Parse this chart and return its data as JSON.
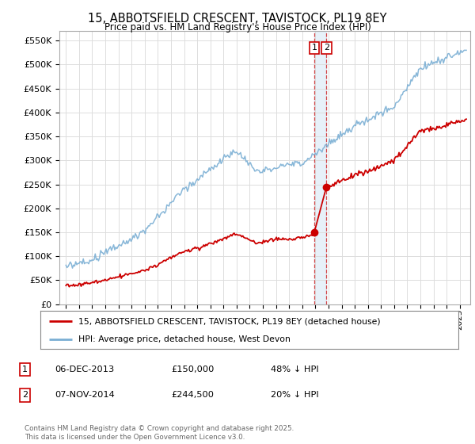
{
  "title": "15, ABBOTSFIELD CRESCENT, TAVISTOCK, PL19 8EY",
  "subtitle": "Price paid vs. HM Land Registry's House Price Index (HPI)",
  "title_fontsize": 11,
  "subtitle_fontsize": 9,
  "legend_line1": "15, ABBOTSFIELD CRESCENT, TAVISTOCK, PL19 8EY (detached house)",
  "legend_line2": "HPI: Average price, detached house, West Devon",
  "red_color": "#cc0000",
  "blue_color": "#7bafd4",
  "vline_color": "#cc0000",
  "transaction1_date": 2013.92,
  "transaction1_price": 150000,
  "transaction2_date": 2014.84,
  "transaction2_price": 244500,
  "table_rows": [
    {
      "num": "1",
      "date": "06-DEC-2013",
      "price": "£150,000",
      "pct": "48% ↓ HPI"
    },
    {
      "num": "2",
      "date": "07-NOV-2014",
      "price": "£244,500",
      "pct": "20% ↓ HPI"
    }
  ],
  "footer": "Contains HM Land Registry data © Crown copyright and database right 2025.\nThis data is licensed under the Open Government Licence v3.0.",
  "ylim": [
    0,
    570000
  ],
  "yticks": [
    0,
    50000,
    100000,
    150000,
    200000,
    250000,
    300000,
    350000,
    400000,
    450000,
    500000,
    550000
  ],
  "xmin": 1994.5,
  "xmax": 2025.8,
  "grid_color": "#dddddd"
}
